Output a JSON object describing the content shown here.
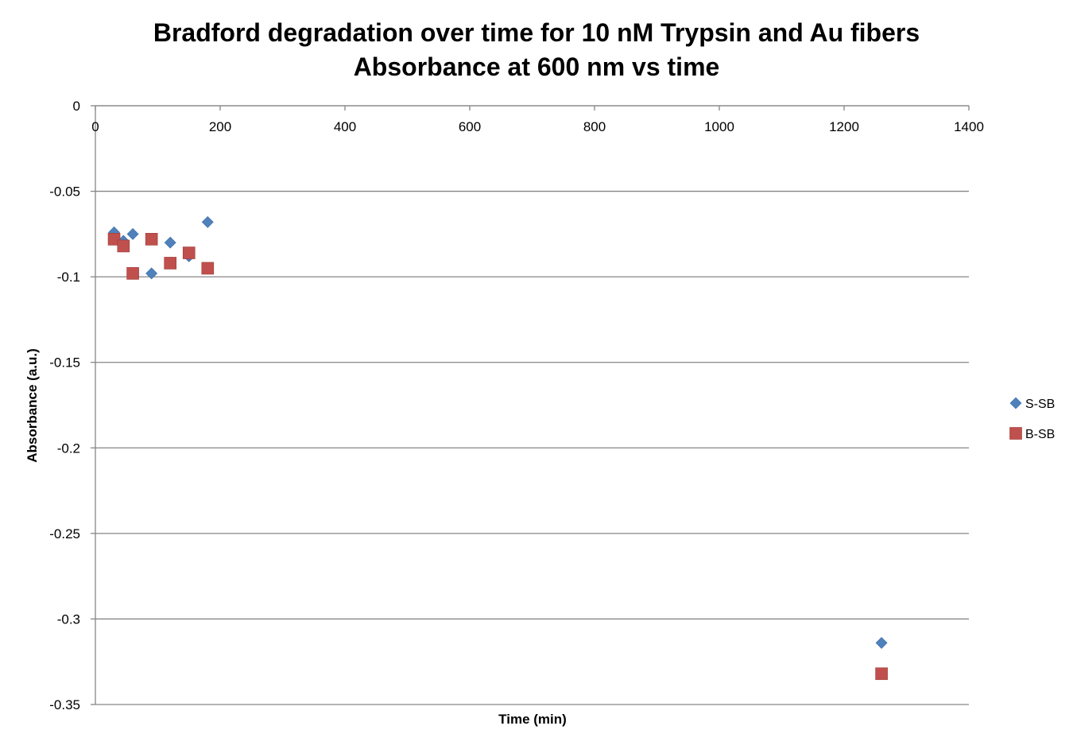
{
  "chart_data": {
    "type": "scatter",
    "title": [
      "Bradford degradation over time for 10 nM Trypsin and Au fibers",
      "Absorbance at 600 nm vs time"
    ],
    "xlabel": "Time (min)",
    "ylabel": "Absorbance (a.u.)",
    "xlim": [
      0,
      1400
    ],
    "ylim": [
      -0.35,
      0
    ],
    "x_ticks": [
      0,
      200,
      400,
      600,
      800,
      1000,
      1200,
      1400
    ],
    "y_ticks": [
      0,
      -0.05,
      -0.1,
      -0.15,
      -0.2,
      -0.25,
      -0.3,
      -0.35
    ],
    "x_tick_labels": [
      "0",
      "200",
      "400",
      "600",
      "800",
      "1000",
      "1200",
      "1400"
    ],
    "y_tick_labels": [
      "0",
      "-0.05",
      "-0.1",
      "-0.15",
      "-0.2",
      "-0.25",
      "-0.3",
      "-0.35"
    ],
    "x_axis_position": "top",
    "grid": "horizontal",
    "legend_position": "right",
    "series": [
      {
        "name": "S-SB",
        "marker": "diamond",
        "color": "#4F81BD",
        "x": [
          30,
          45,
          60,
          90,
          120,
          150,
          180,
          1260
        ],
        "y": [
          -0.074,
          -0.079,
          -0.075,
          -0.098,
          -0.08,
          -0.088,
          -0.068,
          -0.314
        ]
      },
      {
        "name": "B-SB",
        "marker": "square",
        "color": "#C0504D",
        "x": [
          30,
          45,
          60,
          90,
          120,
          150,
          180,
          1260
        ],
        "y": [
          -0.078,
          -0.082,
          -0.098,
          -0.078,
          -0.092,
          -0.086,
          -0.095,
          -0.332
        ]
      }
    ]
  }
}
